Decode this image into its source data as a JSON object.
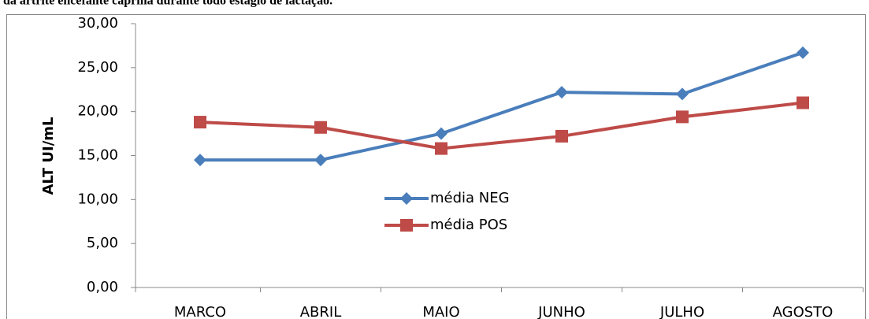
{
  "chart_data": {
    "type": "line",
    "title": "da artrite encefalite caprina durante todo estágio de lactação.",
    "y_label": "ALT UI/mL",
    "categories": [
      "MARCO",
      "ABRIL",
      "MAIO",
      "JUNHO",
      "JULHO",
      "AGOSTO"
    ],
    "series": [
      {
        "name": "média NEG",
        "color": "#4a7ebb",
        "marker": "diamond",
        "values": [
          14.5,
          14.5,
          17.5,
          22.2,
          22.0,
          26.7
        ]
      },
      {
        "name": "média POS",
        "color": "#be4b48",
        "marker": "square",
        "values": [
          18.8,
          18.2,
          15.8,
          17.2,
          19.4,
          21.0
        ]
      }
    ],
    "ylim": [
      0,
      30
    ],
    "yticks": [
      {
        "value": 0,
        "label": "0,00"
      },
      {
        "value": 5,
        "label": "5,00"
      },
      {
        "value": 10,
        "label": "10,00"
      },
      {
        "value": 15,
        "label": "15,00"
      },
      {
        "value": 20,
        "label": "20,00"
      },
      {
        "value": 25,
        "label": "25,00"
      },
      {
        "value": 30,
        "label": "30,00"
      }
    ],
    "grid": false
  }
}
